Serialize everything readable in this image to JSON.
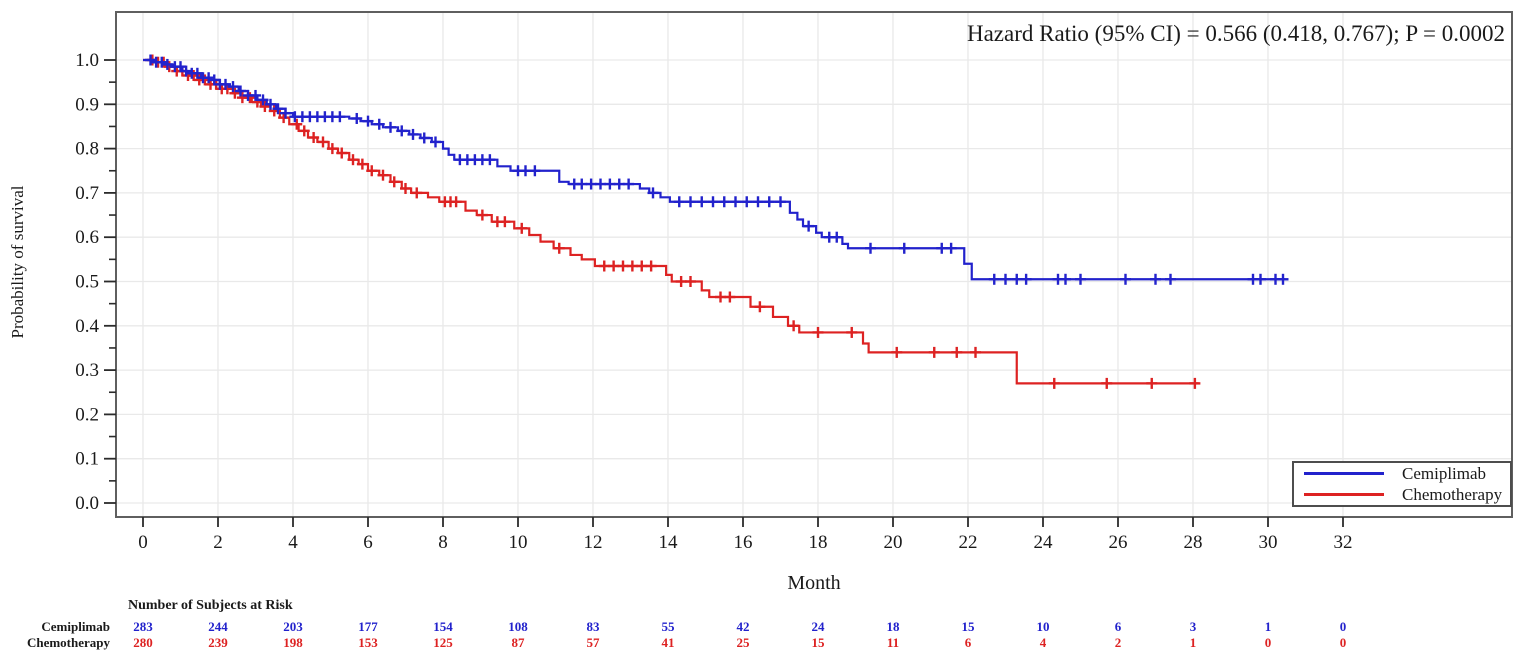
{
  "annotation": {
    "text": "Hazard Ratio (95% CI) = 0.566 (0.418, 0.767); P = 0.0002"
  },
  "colors": {
    "cemiplimab": "#2222cc",
    "chemotherapy": "#dd2222",
    "grid": "#e9e9e9",
    "frame": "#5f5f5f",
    "tick": "#2b2b2b",
    "text": "#1a1a1a"
  },
  "chart_data": {
    "type": "line",
    "subtype": "kaplan-meier-step",
    "title": "",
    "xlabel": "Month",
    "ylabel": "Probability of survival",
    "xlim": [
      0,
      32
    ],
    "ylim": [
      0.0,
      1.0
    ],
    "xticks": [
      0,
      2,
      4,
      6,
      8,
      10,
      12,
      14,
      16,
      18,
      20,
      22,
      24,
      26,
      28,
      30,
      32
    ],
    "yticks": [
      0.0,
      0.1,
      0.2,
      0.3,
      0.4,
      0.5,
      0.6,
      0.7,
      0.8,
      0.9,
      1.0
    ],
    "grid": true,
    "legend_position": "bottom-right",
    "series": [
      {
        "name": "Cemiplimab",
        "color": "#2222cc",
        "end_month": 30.45,
        "steps": [
          [
            0,
            1.0
          ],
          [
            0.3,
            0.995
          ],
          [
            0.55,
            0.99
          ],
          [
            0.8,
            0.985
          ],
          [
            1.05,
            0.975
          ],
          [
            1.3,
            0.97
          ],
          [
            1.55,
            0.96
          ],
          [
            1.8,
            0.955
          ],
          [
            2.05,
            0.945
          ],
          [
            2.3,
            0.94
          ],
          [
            2.55,
            0.93
          ],
          [
            2.8,
            0.92
          ],
          [
            3.05,
            0.91
          ],
          [
            3.3,
            0.9
          ],
          [
            3.55,
            0.89
          ],
          [
            3.8,
            0.88
          ],
          [
            4.0,
            0.872
          ],
          [
            5.5,
            0.868
          ],
          [
            5.8,
            0.862
          ],
          [
            6.1,
            0.855
          ],
          [
            6.4,
            0.848
          ],
          [
            6.8,
            0.84
          ],
          [
            7.1,
            0.832
          ],
          [
            7.4,
            0.824
          ],
          [
            7.7,
            0.815
          ],
          [
            8.0,
            0.8
          ],
          [
            8.15,
            0.786
          ],
          [
            8.3,
            0.775
          ],
          [
            9.45,
            0.76
          ],
          [
            9.8,
            0.75
          ],
          [
            11.1,
            0.725
          ],
          [
            11.35,
            0.72
          ],
          [
            13.25,
            0.71
          ],
          [
            13.5,
            0.7
          ],
          [
            13.8,
            0.69
          ],
          [
            14.05,
            0.68
          ],
          [
            17.25,
            0.655
          ],
          [
            17.45,
            0.64
          ],
          [
            17.6,
            0.625
          ],
          [
            17.95,
            0.61
          ],
          [
            18.1,
            0.6
          ],
          [
            18.65,
            0.585
          ],
          [
            18.8,
            0.575
          ],
          [
            21.9,
            0.54
          ],
          [
            22.1,
            0.505
          ]
        ],
        "censor_months": [
          0.2,
          0.35,
          0.5,
          0.65,
          0.85,
          1.0,
          1.15,
          1.3,
          1.45,
          1.6,
          1.75,
          1.9,
          2.05,
          2.2,
          2.4,
          2.6,
          2.8,
          3.0,
          3.2,
          3.4,
          3.6,
          3.8,
          4.05,
          4.25,
          4.45,
          4.65,
          4.85,
          5.05,
          5.25,
          5.7,
          6.0,
          6.3,
          6.6,
          6.9,
          7.2,
          7.5,
          7.8,
          8.45,
          8.65,
          8.85,
          9.05,
          9.25,
          10.0,
          10.2,
          10.45,
          11.5,
          11.7,
          11.95,
          12.2,
          12.45,
          12.7,
          12.95,
          13.6,
          14.3,
          14.6,
          14.9,
          15.2,
          15.5,
          15.8,
          16.1,
          16.4,
          16.7,
          17.0,
          17.75,
          18.3,
          18.5,
          19.4,
          20.3,
          21.3,
          21.55,
          22.7,
          23.0,
          23.3,
          23.55,
          24.4,
          24.6,
          25.0,
          26.2,
          27.0,
          27.4,
          29.6,
          29.8,
          30.2,
          30.4
        ]
      },
      {
        "name": "Chemotherapy",
        "color": "#dd2222",
        "end_month": 28.15,
        "steps": [
          [
            0,
            1.0
          ],
          [
            0.3,
            0.995
          ],
          [
            0.6,
            0.985
          ],
          [
            0.9,
            0.975
          ],
          [
            1.2,
            0.965
          ],
          [
            1.5,
            0.955
          ],
          [
            1.8,
            0.945
          ],
          [
            2.1,
            0.935
          ],
          [
            2.4,
            0.925
          ],
          [
            2.65,
            0.915
          ],
          [
            2.9,
            0.905
          ],
          [
            3.15,
            0.895
          ],
          [
            3.4,
            0.885
          ],
          [
            3.65,
            0.87
          ],
          [
            3.9,
            0.855
          ],
          [
            4.15,
            0.84
          ],
          [
            4.4,
            0.825
          ],
          [
            4.65,
            0.815
          ],
          [
            4.95,
            0.8
          ],
          [
            5.2,
            0.79
          ],
          [
            5.5,
            0.775
          ],
          [
            5.75,
            0.765
          ],
          [
            6.0,
            0.75
          ],
          [
            6.3,
            0.74
          ],
          [
            6.6,
            0.725
          ],
          [
            6.9,
            0.71
          ],
          [
            7.15,
            0.7
          ],
          [
            7.6,
            0.69
          ],
          [
            7.9,
            0.68
          ],
          [
            8.6,
            0.66
          ],
          [
            8.9,
            0.65
          ],
          [
            9.3,
            0.635
          ],
          [
            9.9,
            0.62
          ],
          [
            10.3,
            0.605
          ],
          [
            10.6,
            0.59
          ],
          [
            10.95,
            0.575
          ],
          [
            11.4,
            0.56
          ],
          [
            11.7,
            0.55
          ],
          [
            12.05,
            0.535
          ],
          [
            13.95,
            0.515
          ],
          [
            14.1,
            0.5
          ],
          [
            14.9,
            0.48
          ],
          [
            15.1,
            0.465
          ],
          [
            16.2,
            0.443
          ],
          [
            16.8,
            0.42
          ],
          [
            17.2,
            0.4
          ],
          [
            17.5,
            0.385
          ],
          [
            19.2,
            0.36
          ],
          [
            19.35,
            0.34
          ],
          [
            23.3,
            0.27
          ]
        ],
        "censor_months": [
          0.25,
          0.4,
          0.55,
          0.7,
          0.9,
          1.05,
          1.2,
          1.35,
          1.5,
          1.65,
          1.8,
          1.95,
          2.1,
          2.25,
          2.45,
          2.65,
          2.85,
          3.05,
          3.25,
          3.5,
          3.75,
          4.1,
          4.3,
          4.55,
          4.8,
          5.05,
          5.3,
          5.6,
          5.85,
          6.1,
          6.4,
          6.7,
          7.0,
          7.3,
          8.05,
          8.2,
          8.35,
          9.05,
          9.45,
          9.65,
          10.1,
          11.1,
          12.3,
          12.55,
          12.8,
          13.05,
          13.3,
          13.55,
          14.35,
          14.6,
          15.4,
          15.65,
          16.45,
          17.35,
          18.0,
          18.9,
          20.1,
          21.1,
          21.7,
          22.2,
          24.3,
          25.7,
          26.9,
          28.05
        ]
      }
    ]
  },
  "risk_table": {
    "title": "Number of Subjects at Risk",
    "months": [
      0,
      2,
      4,
      6,
      8,
      10,
      12,
      14,
      16,
      18,
      20,
      22,
      24,
      26,
      28,
      30,
      32
    ],
    "rows": [
      {
        "label": "Cemiplimab",
        "color": "#2222cc",
        "values": [
          283,
          244,
          203,
          177,
          154,
          108,
          83,
          55,
          42,
          24,
          18,
          15,
          10,
          6,
          3,
          1,
          0
        ]
      },
      {
        "label": "Chemotherapy",
        "color": "#dd2222",
        "values": [
          280,
          239,
          198,
          153,
          125,
          87,
          57,
          41,
          25,
          15,
          11,
          6,
          4,
          2,
          1,
          0,
          0
        ]
      }
    ]
  }
}
